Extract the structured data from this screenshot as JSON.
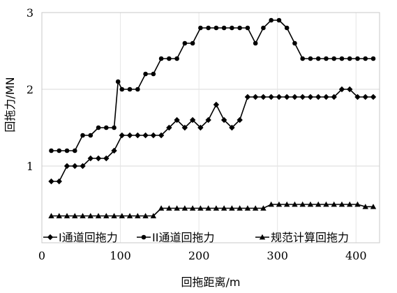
{
  "chart_data": {
    "type": "line",
    "xlabel": "回拖距离/m",
    "ylabel": "回拖力/MN",
    "xlim": [
      0,
      430
    ],
    "ylim": [
      0,
      3
    ],
    "xticks": [
      0,
      100,
      200,
      300,
      400
    ],
    "yticks": [
      1,
      2,
      3
    ],
    "grid": "horizontal",
    "legend_position": "bottom",
    "series": [
      {
        "name": "I通道回拖力",
        "marker": "diamond",
        "x": [
          12,
          22,
          32,
          42,
          52,
          62,
          72,
          82,
          92,
          102,
          112,
          122,
          132,
          142,
          152,
          162,
          172,
          182,
          192,
          202,
          212,
          222,
          232,
          242,
          252,
          262,
          272,
          282,
          292,
          302,
          312,
          322,
          332,
          342,
          352,
          362,
          372,
          382,
          392,
          402,
          412,
          422
        ],
        "y": [
          0.8,
          0.8,
          1.0,
          1.0,
          1.0,
          1.1,
          1.1,
          1.1,
          1.2,
          1.4,
          1.4,
          1.4,
          1.4,
          1.4,
          1.4,
          1.5,
          1.6,
          1.5,
          1.6,
          1.5,
          1.6,
          1.8,
          1.6,
          1.5,
          1.6,
          1.9,
          1.9,
          1.9,
          1.9,
          1.9,
          1.9,
          1.9,
          1.9,
          1.9,
          1.9,
          1.9,
          1.9,
          2.0,
          2.0,
          1.9,
          1.9,
          1.9
        ]
      },
      {
        "name": "II通道回拖力",
        "marker": "circle",
        "x": [
          12,
          22,
          32,
          42,
          52,
          62,
          72,
          82,
          92,
          97,
          102,
          112,
          122,
          132,
          142,
          152,
          162,
          172,
          182,
          192,
          202,
          212,
          222,
          232,
          242,
          252,
          262,
          272,
          282,
          292,
          302,
          312,
          322,
          332,
          342,
          352,
          362,
          372,
          382,
          392,
          402,
          412,
          422
        ],
        "y": [
          1.2,
          1.2,
          1.2,
          1.2,
          1.4,
          1.4,
          1.5,
          1.5,
          1.5,
          2.1,
          2.0,
          2.0,
          2.0,
          2.2,
          2.2,
          2.4,
          2.4,
          2.4,
          2.6,
          2.6,
          2.8,
          2.8,
          2.8,
          2.8,
          2.8,
          2.8,
          2.8,
          2.6,
          2.8,
          2.9,
          2.9,
          2.8,
          2.6,
          2.4,
          2.4,
          2.4,
          2.4,
          2.4,
          2.4,
          2.4,
          2.4,
          2.4,
          2.4
        ]
      },
      {
        "name": "规范计算回拖力",
        "marker": "triangle",
        "x": [
          12,
          22,
          32,
          42,
          52,
          62,
          72,
          82,
          92,
          102,
          112,
          122,
          132,
          142,
          152,
          162,
          172,
          182,
          192,
          202,
          212,
          222,
          232,
          242,
          252,
          262,
          272,
          282,
          292,
          302,
          312,
          322,
          332,
          342,
          352,
          362,
          372,
          382,
          392,
          402,
          412,
          422
        ],
        "y": [
          0.35,
          0.35,
          0.35,
          0.35,
          0.35,
          0.35,
          0.35,
          0.35,
          0.35,
          0.35,
          0.35,
          0.35,
          0.35,
          0.35,
          0.45,
          0.45,
          0.45,
          0.45,
          0.45,
          0.45,
          0.45,
          0.45,
          0.45,
          0.45,
          0.45,
          0.45,
          0.45,
          0.45,
          0.5,
          0.5,
          0.5,
          0.5,
          0.5,
          0.5,
          0.5,
          0.5,
          0.5,
          0.5,
          0.5,
          0.5,
          0.47,
          0.47
        ]
      }
    ]
  }
}
